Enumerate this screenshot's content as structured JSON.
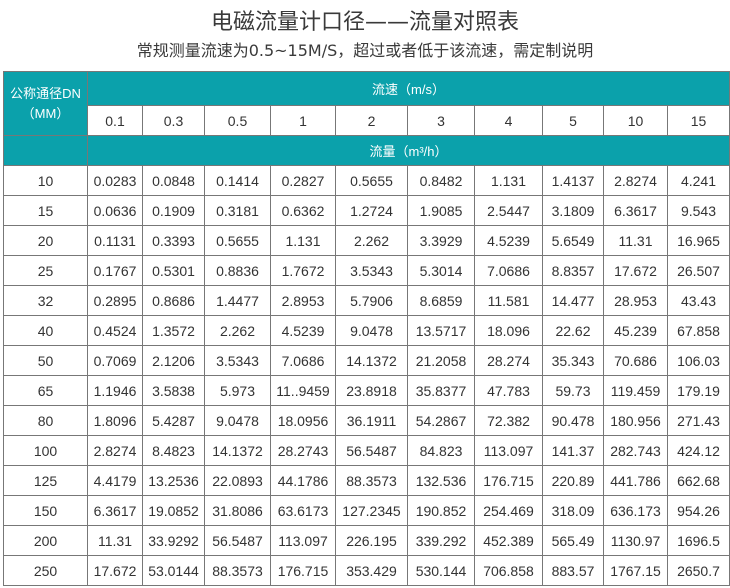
{
  "title": "电磁流量计口径——流量对照表",
  "subtitle": "常规测量流速为0.5~15M/S，超过或者低于该流速，需定制说明",
  "table": {
    "dn_header_line1": "公称通径DN",
    "dn_header_line2": "（MM）",
    "velocity_header": "流速（m/s）",
    "flow_header": "流量（m³/h）",
    "velocities": [
      "0.1",
      "0.3",
      "0.5",
      "1",
      "2",
      "3",
      "4",
      "5",
      "10",
      "15"
    ],
    "rows": [
      {
        "dn": "10",
        "values": [
          "0.0283",
          "0.0848",
          "0.1414",
          "0.2827",
          "0.5655",
          "0.8482",
          "1.131",
          "1.4137",
          "2.8274",
          "4.241"
        ]
      },
      {
        "dn": "15",
        "values": [
          "0.0636",
          "0.1909",
          "0.3181",
          "0.6362",
          "1.2724",
          "1.9085",
          "2.5447",
          "3.1809",
          "6.3617",
          "9.543"
        ]
      },
      {
        "dn": "20",
        "values": [
          "0.1131",
          "0.3393",
          "0.5655",
          "1.131",
          "2.262",
          "3.3929",
          "4.5239",
          "5.6549",
          "11.31",
          "16.965"
        ]
      },
      {
        "dn": "25",
        "values": [
          "0.1767",
          "0.5301",
          "0.8836",
          "1.7672",
          "3.5343",
          "5.3014",
          "7.0686",
          "8.8357",
          "17.672",
          "26.507"
        ]
      },
      {
        "dn": "32",
        "values": [
          "0.2895",
          "0.8686",
          "1.4477",
          "2.8953",
          "5.7906",
          "8.6859",
          "11.581",
          "14.477",
          "28.953",
          "43.43"
        ]
      },
      {
        "dn": "40",
        "values": [
          "0.4524",
          "1.3572",
          "2.262",
          "4.5239",
          "9.0478",
          "13.5717",
          "18.096",
          "22.62",
          "45.239",
          "67.858"
        ]
      },
      {
        "dn": "50",
        "values": [
          "0.7069",
          "2.1206",
          "3.5343",
          "7.0686",
          "14.1372",
          "21.2058",
          "28.274",
          "35.343",
          "70.686",
          "106.03"
        ]
      },
      {
        "dn": "65",
        "values": [
          "1.1946",
          "3.5838",
          "5.973",
          "11..9459",
          "23.8918",
          "35.8377",
          "47.783",
          "59.73",
          "119.459",
          "179.19"
        ]
      },
      {
        "dn": "80",
        "values": [
          "1.8096",
          "5.4287",
          "9.0478",
          "18.0956",
          "36.1911",
          "54.2867",
          "72.382",
          "90.478",
          "180.956",
          "271.43"
        ]
      },
      {
        "dn": "100",
        "values": [
          "2.8274",
          "8.4823",
          "14.1372",
          "28.2743",
          "56.5487",
          "84.823",
          "113.097",
          "141.37",
          "282.743",
          "424.12"
        ]
      },
      {
        "dn": "125",
        "values": [
          "4.4179",
          "13.2536",
          "22.0893",
          "44.1786",
          "88.3573",
          "132.536",
          "176.715",
          "220.89",
          "441.786",
          "662.68"
        ]
      },
      {
        "dn": "150",
        "values": [
          "6.3617",
          "19.0852",
          "31.8086",
          "63.6173",
          "127.2345",
          "190.852",
          "254.469",
          "318.09",
          "636.173",
          "954.26"
        ]
      },
      {
        "dn": "200",
        "values": [
          "11.31",
          "33.9292",
          "56.5487",
          "113.097",
          "226.195",
          "339.292",
          "452.389",
          "565.49",
          "1130.97",
          "1696.5"
        ]
      },
      {
        "dn": "250",
        "values": [
          "17.672",
          "53.0144",
          "88.3573",
          "176.715",
          "353.429",
          "530.144",
          "706.858",
          "883.57",
          "1767.15",
          "2650.7"
        ]
      }
    ]
  },
  "colors": {
    "header_teal": "#0ba1ab",
    "border": "#777777"
  }
}
